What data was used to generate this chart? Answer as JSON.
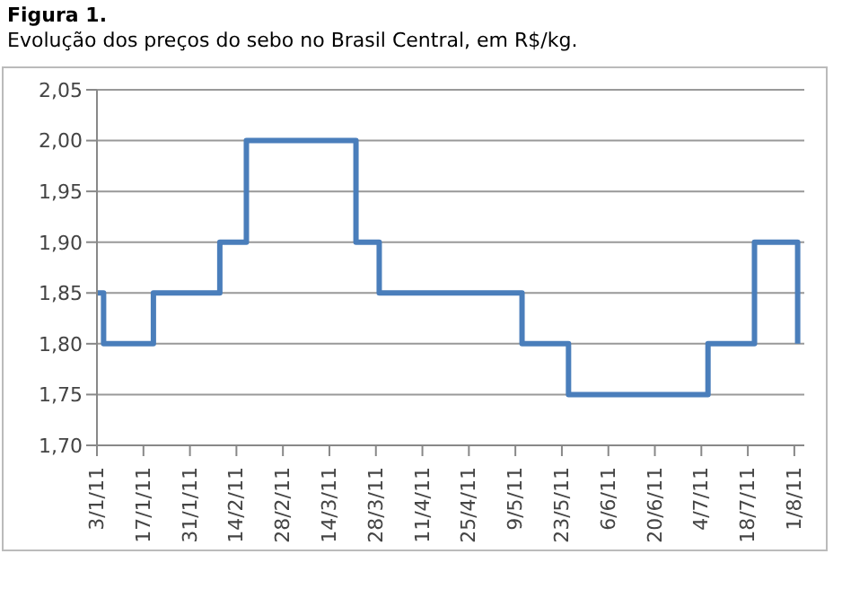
{
  "chart_data": {
    "type": "step",
    "title": "Figura 1.",
    "subtitle": "Evolução dos preços do sebo no Brasil Central, em R$/kg.",
    "x": [
      "--01-03",
      "--01-05",
      "--01-20",
      "--02-09",
      "--02-17",
      "--03-22",
      "--03-29",
      "--05-11",
      "--05-25",
      "--07-06",
      "--07-20",
      "--08-02"
    ],
    "series": [
      {
        "color": "#4a7ebb",
        "values": [
          1.85,
          1.8,
          1.85,
          1.9,
          2.0,
          1.9,
          1.85,
          1.8,
          1.75,
          1.8,
          1.9,
          1.8
        ]
      }
    ],
    "xlim": [
      "--01-03",
      "--08-04"
    ],
    "xticks": [
      {
        "value": "--01-03",
        "label": "3/1/11"
      },
      {
        "value": "--01-17",
        "label": "17/1/11"
      },
      {
        "value": "--01-31",
        "label": "31/1/11"
      },
      {
        "value": "--02-14",
        "label": "14/2/11"
      },
      {
        "value": "--02-28",
        "label": "28/2/11"
      },
      {
        "value": "--03-14",
        "label": "14/3/11"
      },
      {
        "value": "--03-28",
        "label": "28/3/11"
      },
      {
        "value": "--04-11",
        "label": "11/4/11"
      },
      {
        "value": "--04-25",
        "label": "25/4/11"
      },
      {
        "value": "--05-09",
        "label": "9/5/11"
      },
      {
        "value": "--05-23",
        "label": "23/5/11"
      },
      {
        "value": "--06-06",
        "label": "6/6/11"
      },
      {
        "value": "--06-20",
        "label": "20/6/11"
      },
      {
        "value": "--07-04",
        "label": "4/7/11"
      },
      {
        "value": "--07-18",
        "label": "18/7/11"
      },
      {
        "value": "--08-01",
        "label": "1/8/11"
      }
    ],
    "ylim": [
      1.7,
      2.05
    ],
    "yticks": [
      {
        "value": 1.7,
        "label": "1,70"
      },
      {
        "value": 1.75,
        "label": "1,75"
      },
      {
        "value": 1.8,
        "label": "1,80"
      },
      {
        "value": 1.85,
        "label": "1,85"
      },
      {
        "value": 1.9,
        "label": "1,90"
      },
      {
        "value": 1.95,
        "label": "1,95"
      },
      {
        "value": 2.0,
        "label": "2,00"
      },
      {
        "value": 2.05,
        "label": "2,05"
      }
    ],
    "grid": "y",
    "marker": "none",
    "line_style": "solid"
  }
}
